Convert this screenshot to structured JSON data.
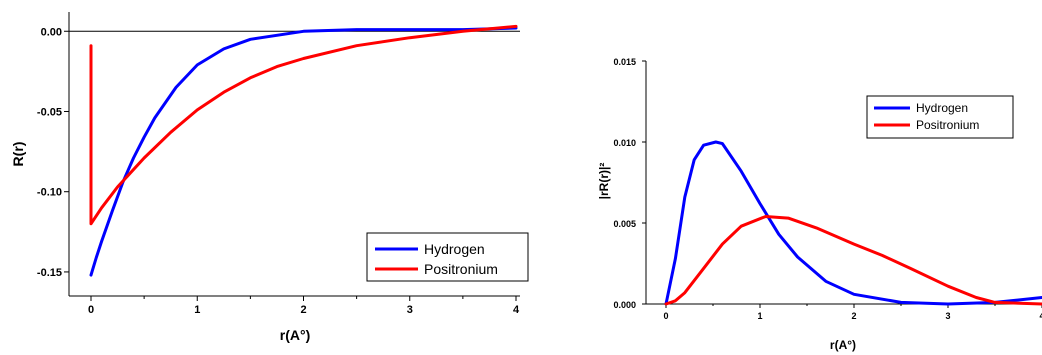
{
  "chart_data": [
    {
      "type": "line",
      "title": "",
      "xlabel": "r(A°)",
      "ylabel": "R(r)",
      "xlim": [
        -0.2,
        4
      ],
      "ylim": [
        -0.165,
        0.012
      ],
      "xticks": [
        "0",
        "1",
        "2",
        "3",
        "4"
      ],
      "yticks": [
        "0.00",
        "-0.05",
        "-0.10",
        "-0.15"
      ],
      "zero_line": true,
      "legend_position": "bottom-right",
      "colors": {
        "Hydrogen": "#0000ff",
        "Positronium": "#ff0000"
      },
      "series": [
        {
          "name": "Hydrogen",
          "x": [
            0.0,
            0.05,
            0.1,
            0.2,
            0.3,
            0.4,
            0.5,
            0.6,
            0.8,
            1.0,
            1.25,
            1.5,
            2.0,
            2.5,
            3.0,
            3.5,
            4.0
          ],
          "y": [
            -0.152,
            -0.141,
            -0.131,
            -0.112,
            -0.094,
            -0.079,
            -0.066,
            -0.054,
            -0.035,
            -0.021,
            -0.011,
            -0.005,
            0.0,
            0.001,
            0.001,
            0.001,
            0.002
          ]
        },
        {
          "name": "Positronium",
          "x": [
            0.0,
            0.0,
            0.1,
            0.25,
            0.5,
            0.75,
            1.0,
            1.25,
            1.5,
            1.75,
            2.0,
            2.5,
            3.0,
            3.5,
            4.0
          ],
          "y": [
            -0.009,
            -0.12,
            -0.11,
            -0.097,
            -0.079,
            -0.063,
            -0.049,
            -0.038,
            -0.029,
            -0.022,
            -0.017,
            -0.009,
            -0.004,
            0.0,
            0.003
          ]
        }
      ]
    },
    {
      "type": "line",
      "title": "",
      "xlabel": "r(A°)",
      "ylabel": "|rR(r)|²",
      "xlim": [
        -0.2,
        4
      ],
      "ylim": [
        0,
        0.015
      ],
      "xticks": [
        "0",
        "1",
        "2",
        "3",
        "4"
      ],
      "yticks": [
        "0.000",
        "0.005",
        "0.010",
        "0.015"
      ],
      "legend_position": "top-right",
      "colors": {
        "Hydrogen": "#0000ff",
        "Positronium": "#ff0000"
      },
      "series": [
        {
          "name": "Hydrogen",
          "x": [
            0.0,
            0.1,
            0.2,
            0.3,
            0.4,
            0.53,
            0.6,
            0.8,
            1.0,
            1.2,
            1.4,
            1.7,
            2.0,
            2.5,
            3.0,
            3.5,
            4.0
          ],
          "y": [
            0.0,
            0.0028,
            0.0066,
            0.0089,
            0.0098,
            0.01,
            0.0099,
            0.0082,
            0.0062,
            0.0043,
            0.0029,
            0.0014,
            0.0006,
            0.0001,
            0.0,
            0.0001,
            0.0004
          ]
        },
        {
          "name": "Positronium",
          "x": [
            0.0,
            0.1,
            0.2,
            0.4,
            0.6,
            0.8,
            1.06,
            1.3,
            1.6,
            2.0,
            2.3,
            2.6,
            3.0,
            3.3,
            3.5,
            4.0
          ],
          "y": [
            0.0,
            0.0002,
            0.0007,
            0.0022,
            0.0037,
            0.0048,
            0.0054,
            0.0053,
            0.0047,
            0.0037,
            0.003,
            0.0022,
            0.0011,
            0.0004,
            0.0001,
            0.0
          ]
        }
      ]
    }
  ]
}
